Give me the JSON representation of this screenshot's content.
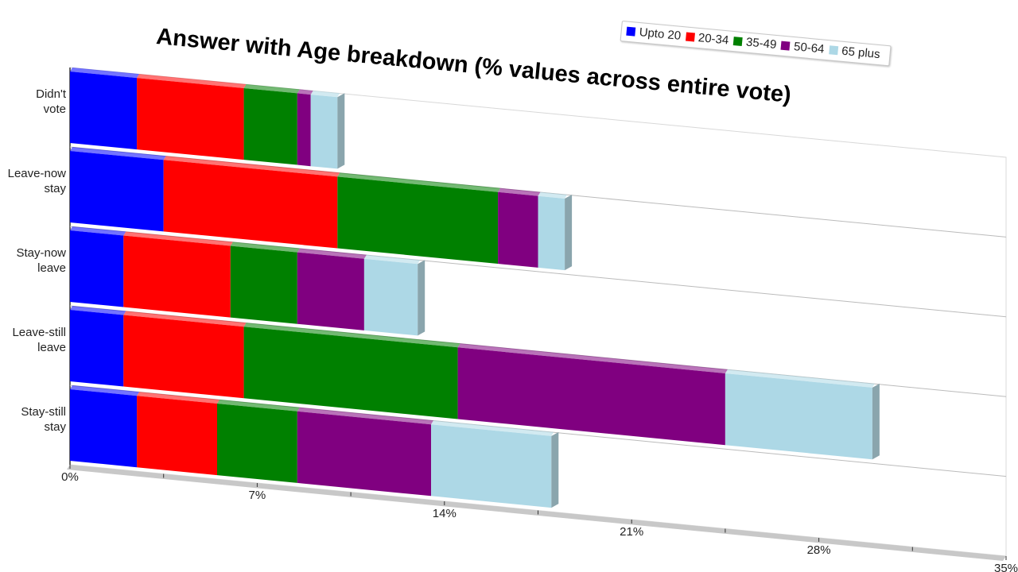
{
  "chart_data": {
    "type": "bar",
    "orientation": "horizontal",
    "stacked": true,
    "title": "Answer with Age breakdown (% values across entire vote)",
    "categories": [
      "Didn't vote",
      "Leave-now stay",
      "Stay-now leave",
      "Leave-still leave",
      "Stay-still stay"
    ],
    "category_lines": [
      [
        "Didn't",
        "vote"
      ],
      [
        "Leave-now",
        "stay"
      ],
      [
        "Stay-now",
        "leave"
      ],
      [
        "Leave-still",
        "leave"
      ],
      [
        "Stay-still",
        "stay"
      ]
    ],
    "series": [
      {
        "name": "Upto 20",
        "color": "#0000ff",
        "values": [
          2.5,
          3.5,
          2.0,
          2.0,
          2.5
        ]
      },
      {
        "name": "20-34",
        "color": "#ff0000",
        "values": [
          4.0,
          6.5,
          4.0,
          4.5,
          3.0
        ]
      },
      {
        "name": "35-49",
        "color": "#008000",
        "values": [
          2.0,
          6.0,
          2.5,
          8.0,
          3.0
        ]
      },
      {
        "name": "50-64",
        "color": "#800080",
        "values": [
          0.5,
          1.5,
          2.5,
          10.0,
          5.0
        ]
      },
      {
        "name": "65 plus",
        "color": "#add8e6",
        "values": [
          1.0,
          1.0,
          2.0,
          5.5,
          4.5
        ]
      }
    ],
    "x_ticks": [
      "0%",
      "7%",
      "14%",
      "21%",
      "28%",
      "35%"
    ],
    "xlim": [
      0,
      35
    ],
    "legend_position": "top-right",
    "grid": false,
    "perspective": "3d-tilted"
  }
}
